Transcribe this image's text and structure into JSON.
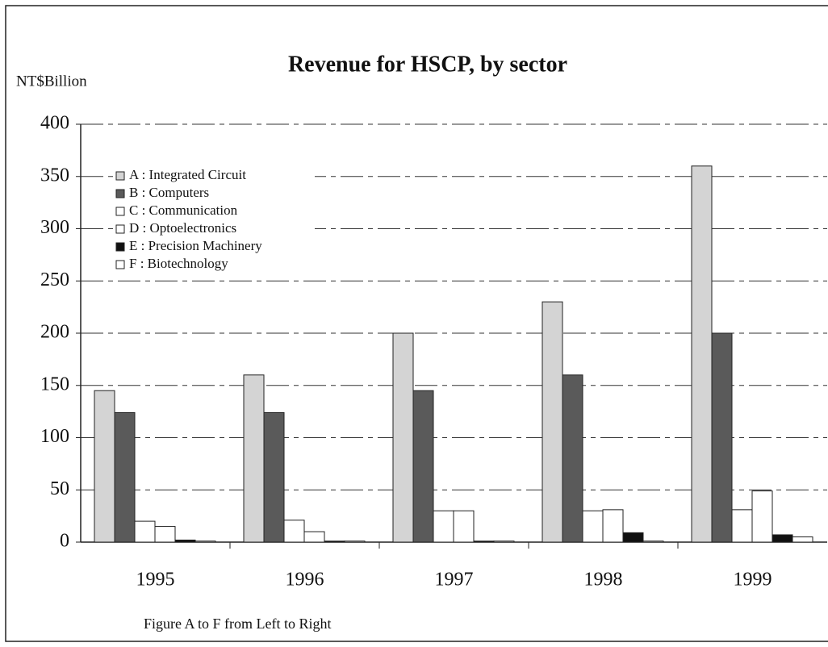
{
  "chart_data": {
    "type": "bar",
    "title": "Revenue for HSCP, by sector",
    "ylabel": "NT$Billion",
    "note": "Figure A to F from Left to Right",
    "categories": [
      "1995",
      "1996",
      "1997",
      "1998",
      "1999"
    ],
    "series": [
      {
        "name": "A : Integrated Circuit",
        "color": "#d4d4d4",
        "values": [
          145,
          160,
          200,
          230,
          360
        ]
      },
      {
        "name": "B : Computers",
        "color": "#5a5a5a",
        "values": [
          124,
          124,
          145,
          160,
          200
        ]
      },
      {
        "name": "C : Communication",
        "color": "#ffffff",
        "values": [
          20,
          21,
          30,
          30,
          31
        ]
      },
      {
        "name": "D : Optoelectronics",
        "color": "#ffffff",
        "values": [
          15,
          10,
          30,
          31,
          49
        ]
      },
      {
        "name": "E : Precision Machinery",
        "color": "#111111",
        "values": [
          2,
          1,
          1,
          9,
          7
        ]
      },
      {
        "name": "F : Biotechnology",
        "color": "#ffffff",
        "values": [
          1,
          1,
          1,
          1,
          5
        ]
      }
    ],
    "ylim": [
      0,
      400
    ],
    "yticks": [
      0,
      50,
      100,
      150,
      200,
      250,
      300,
      350,
      400
    ],
    "grid": true,
    "legend": "upper left"
  }
}
